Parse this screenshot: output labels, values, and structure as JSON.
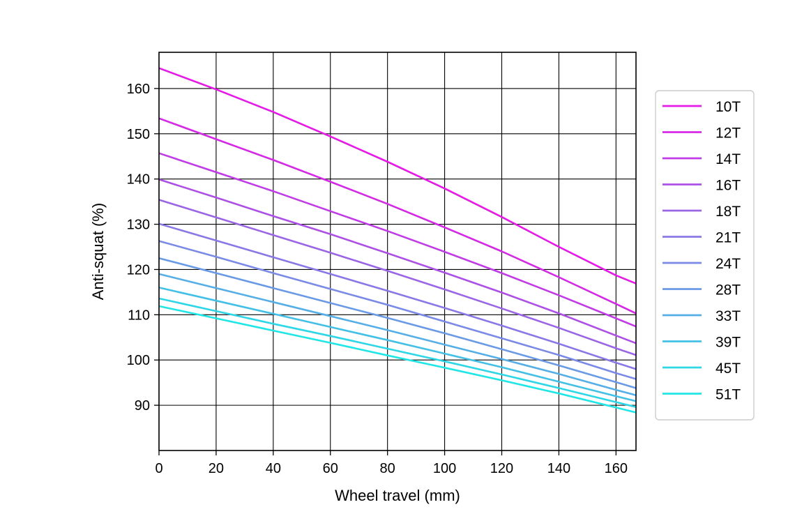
{
  "chart_data": {
    "type": "line",
    "title": "",
    "xlabel": "Wheel travel (mm)",
    "ylabel": "Anti-squat (%)",
    "xlim": [
      0,
      167
    ],
    "ylim": [
      80,
      168
    ],
    "xticks": [
      0,
      20,
      40,
      60,
      80,
      100,
      120,
      140,
      160
    ],
    "yticks": [
      90,
      100,
      110,
      120,
      130,
      140,
      150,
      160
    ],
    "grid": true,
    "legend_position": "right, outside plot area",
    "x": [
      0,
      20,
      40,
      60,
      80,
      100,
      120,
      140,
      160,
      167
    ],
    "series": [
      {
        "name": "10T",
        "color": "#e61ae6",
        "values": [
          164.5,
          159.8,
          154.8,
          149.4,
          143.8,
          137.9,
          131.6,
          125.0,
          118.7,
          116.9
        ]
      },
      {
        "name": "12T",
        "color": "#d42ae6",
        "values": [
          153.4,
          148.8,
          144.2,
          139.4,
          134.5,
          129.3,
          124.0,
          118.3,
          112.4,
          110.3
        ]
      },
      {
        "name": "14T",
        "color": "#c03ce6",
        "values": [
          145.7,
          141.5,
          137.3,
          132.9,
          128.5,
          123.9,
          119.2,
          114.3,
          109.2,
          107.4
        ]
      },
      {
        "name": "16T",
        "color": "#ad50e6",
        "values": [
          139.9,
          135.9,
          131.8,
          127.8,
          123.6,
          119.3,
          114.9,
          110.3,
          105.4,
          103.7
        ]
      },
      {
        "name": "18T",
        "color": "#9a66e6",
        "values": [
          135.4,
          131.5,
          127.6,
          123.7,
          119.7,
          115.6,
          111.4,
          107.1,
          102.6,
          101.1
        ]
      },
      {
        "name": "21T",
        "color": "#8a78e6",
        "values": [
          130.1,
          126.4,
          122.7,
          119.0,
          115.3,
          111.5,
          107.6,
          103.6,
          99.4,
          98.0
        ]
      },
      {
        "name": "24T",
        "color": "#7a8ae6",
        "values": [
          126.3,
          122.8,
          119.2,
          115.7,
          112.2,
          108.5,
          104.8,
          101.1,
          97.1,
          95.8
        ]
      },
      {
        "name": "28T",
        "color": "#6a9ae6",
        "values": [
          122.5,
          119.2,
          115.9,
          112.6,
          109.3,
          105.9,
          102.4,
          98.8,
          95.1,
          93.8
        ]
      },
      {
        "name": "33T",
        "color": "#56aee6",
        "values": [
          119.0,
          115.9,
          112.8,
          109.7,
          106.6,
          103.4,
          100.2,
          96.9,
          93.4,
          92.2
        ]
      },
      {
        "name": "39T",
        "color": "#44c0e6",
        "values": [
          116.0,
          113.1,
          110.2,
          107.3,
          104.4,
          101.4,
          98.4,
          95.2,
          92.0,
          90.9
        ]
      },
      {
        "name": "45T",
        "color": "#2ed6e6",
        "values": [
          113.6,
          110.8,
          108.0,
          105.3,
          102.5,
          99.7,
          96.8,
          93.8,
          90.7,
          89.6
        ]
      },
      {
        "name": "51T",
        "color": "#20e6e6",
        "values": [
          111.9,
          109.2,
          106.5,
          103.8,
          101.0,
          98.3,
          95.5,
          92.6,
          89.5,
          88.4
        ]
      }
    ]
  }
}
